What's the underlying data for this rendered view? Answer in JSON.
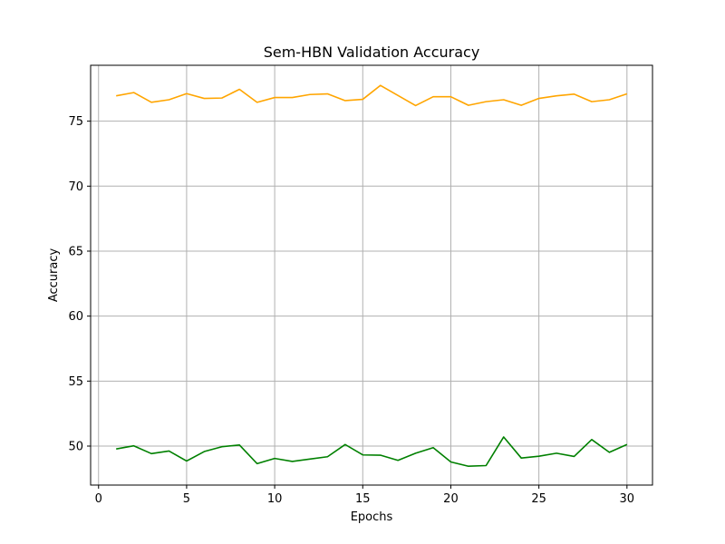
{
  "chart_data": {
    "type": "line",
    "title": "Sem-HBN Validation Accuracy",
    "xlabel": "Epochs",
    "ylabel": "Accuracy",
    "xlim": [
      -0.45,
      31.45
    ],
    "ylim": [
      47.0,
      79.3
    ],
    "xticks": [
      0,
      5,
      10,
      15,
      20,
      25,
      30
    ],
    "yticks": [
      50,
      55,
      60,
      65,
      70,
      75
    ],
    "grid": true,
    "x": [
      1,
      2,
      3,
      4,
      5,
      6,
      7,
      8,
      9,
      10,
      11,
      12,
      13,
      14,
      15,
      16,
      17,
      18,
      19,
      20,
      21,
      22,
      23,
      24,
      25,
      26,
      27,
      28,
      29,
      30
    ],
    "series": [
      {
        "color": "#ffa500",
        "values": [
          76.95,
          77.2,
          76.45,
          76.65,
          77.12,
          76.75,
          76.78,
          77.45,
          76.45,
          76.82,
          76.82,
          77.05,
          77.1,
          76.58,
          76.68,
          77.75,
          76.98,
          76.2,
          76.88,
          76.88,
          76.22,
          76.5,
          76.65,
          76.22,
          76.75,
          76.95,
          77.08,
          76.5,
          76.65,
          77.1
        ]
      },
      {
        "color": "#008000",
        "values": [
          49.78,
          50.02,
          49.42,
          49.62,
          48.85,
          49.58,
          49.95,
          50.08,
          48.65,
          49.05,
          48.82,
          49.0,
          49.18,
          50.12,
          49.32,
          49.3,
          48.9,
          49.45,
          49.88,
          48.78,
          48.45,
          48.5,
          50.7,
          49.08,
          49.22,
          49.45,
          49.2,
          50.5,
          49.52,
          50.12
        ]
      }
    ]
  }
}
